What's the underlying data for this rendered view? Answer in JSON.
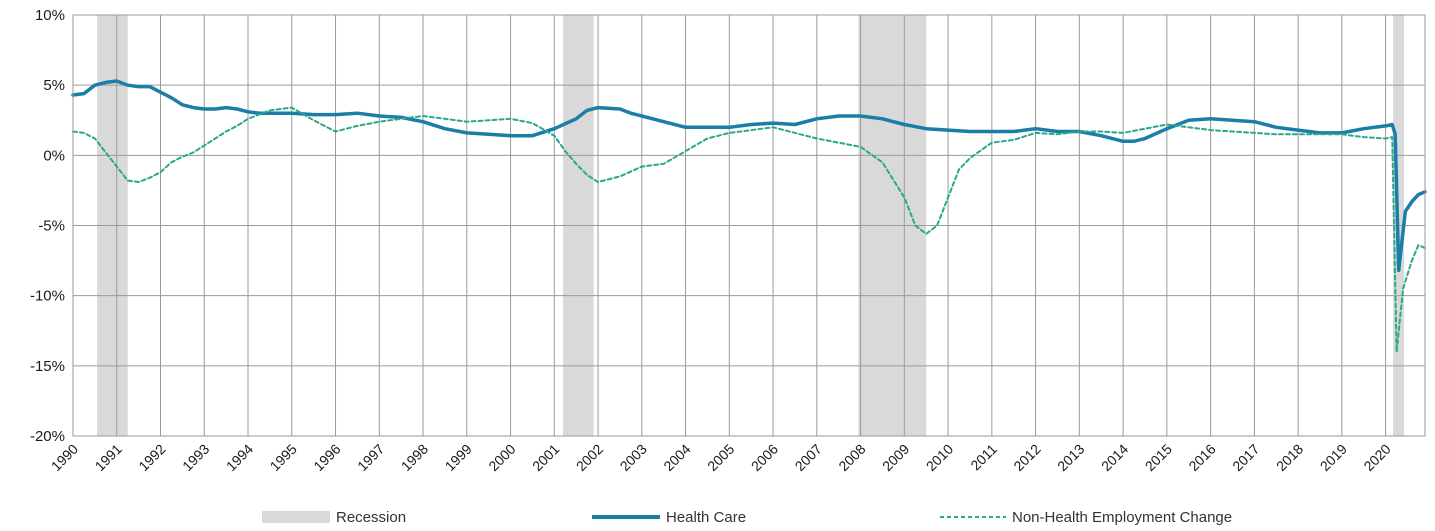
{
  "chart_data": {
    "type": "line",
    "title": "",
    "xlabel": "",
    "ylabel": "",
    "ylim": [
      -20,
      10
    ],
    "xlim": [
      1990,
      2020.9
    ],
    "y_ticks": [
      "10%",
      "5%",
      "0%",
      "-5%",
      "-10%",
      "-15%",
      "-20%"
    ],
    "x_ticks": [
      "1990",
      "1991",
      "1992",
      "1993",
      "1994",
      "1995",
      "1996",
      "1997",
      "1998",
      "1999",
      "2000",
      "2001",
      "2002",
      "2003",
      "2004",
      "2005",
      "2006",
      "2007",
      "2008",
      "2009",
      "2010",
      "2011",
      "2012",
      "2013",
      "2014",
      "2015",
      "2016",
      "2017",
      "2018",
      "2019",
      "2020"
    ],
    "grid": true,
    "legend_position": "bottom",
    "recessions": [
      [
        1990.55,
        1991.25
      ],
      [
        2001.2,
        2001.9
      ],
      [
        2007.95,
        2009.5
      ],
      [
        2020.17,
        2020.42
      ]
    ],
    "legend": [
      "Recession",
      "Health Care",
      "Non-Health Employment Change"
    ],
    "series": [
      {
        "name": "Health Care",
        "color": "#1a7ea6",
        "style": "solid",
        "points": [
          [
            1990,
            4.3
          ],
          [
            1990.25,
            4.4
          ],
          [
            1990.5,
            5.0
          ],
          [
            1990.75,
            5.2
          ],
          [
            1991,
            5.3
          ],
          [
            1991.25,
            5.0
          ],
          [
            1991.5,
            4.9
          ],
          [
            1991.75,
            4.9
          ],
          [
            1992,
            4.5
          ],
          [
            1992.25,
            4.1
          ],
          [
            1992.5,
            3.6
          ],
          [
            1992.75,
            3.4
          ],
          [
            1993,
            3.3
          ],
          [
            1993.25,
            3.3
          ],
          [
            1993.5,
            3.4
          ],
          [
            1993.75,
            3.3
          ],
          [
            1994,
            3.1
          ],
          [
            1994.25,
            3.0
          ],
          [
            1994.5,
            3.0
          ],
          [
            1994.75,
            3.0
          ],
          [
            1995,
            3.0
          ],
          [
            1995.5,
            2.9
          ],
          [
            1996,
            2.9
          ],
          [
            1996.5,
            3.0
          ],
          [
            1997,
            2.8
          ],
          [
            1997.5,
            2.7
          ],
          [
            1998,
            2.4
          ],
          [
            1998.5,
            1.9
          ],
          [
            1999,
            1.6
          ],
          [
            1999.5,
            1.5
          ],
          [
            2000,
            1.4
          ],
          [
            2000.5,
            1.4
          ],
          [
            2001,
            1.9
          ],
          [
            2001.5,
            2.6
          ],
          [
            2001.75,
            3.2
          ],
          [
            2002,
            3.4
          ],
          [
            2002.5,
            3.3
          ],
          [
            2002.75,
            3.0
          ],
          [
            2003,
            2.8
          ],
          [
            2003.5,
            2.4
          ],
          [
            2004,
            2.0
          ],
          [
            2004.5,
            2.0
          ],
          [
            2005,
            2.0
          ],
          [
            2005.5,
            2.2
          ],
          [
            2006,
            2.3
          ],
          [
            2006.5,
            2.2
          ],
          [
            2007,
            2.6
          ],
          [
            2007.5,
            2.8
          ],
          [
            2008,
            2.8
          ],
          [
            2008.5,
            2.6
          ],
          [
            2009,
            2.2
          ],
          [
            2009.5,
            1.9
          ],
          [
            2010,
            1.8
          ],
          [
            2010.5,
            1.7
          ],
          [
            2011,
            1.7
          ],
          [
            2011.5,
            1.7
          ],
          [
            2012,
            1.9
          ],
          [
            2012.5,
            1.7
          ],
          [
            2013,
            1.7
          ],
          [
            2013.5,
            1.4
          ],
          [
            2014,
            1.0
          ],
          [
            2014.25,
            1.0
          ],
          [
            2014.5,
            1.2
          ],
          [
            2015,
            1.9
          ],
          [
            2015.5,
            2.5
          ],
          [
            2016,
            2.6
          ],
          [
            2016.5,
            2.5
          ],
          [
            2017,
            2.4
          ],
          [
            2017.5,
            2.0
          ],
          [
            2018,
            1.8
          ],
          [
            2018.5,
            1.6
          ],
          [
            2019,
            1.6
          ],
          [
            2019.5,
            1.9
          ],
          [
            2020,
            2.1
          ],
          [
            2020.15,
            2.2
          ],
          [
            2020.22,
            1.5
          ],
          [
            2020.3,
            -8.2
          ],
          [
            2020.45,
            -4.0
          ],
          [
            2020.6,
            -3.3
          ],
          [
            2020.75,
            -2.8
          ],
          [
            2020.9,
            -2.6
          ]
        ]
      },
      {
        "name": "Non-Health Employment Change",
        "color": "#2ba889",
        "style": "dashed",
        "points": [
          [
            1990,
            1.7
          ],
          [
            1990.25,
            1.6
          ],
          [
            1990.5,
            1.2
          ],
          [
            1990.75,
            0.2
          ],
          [
            1991,
            -0.8
          ],
          [
            1991.25,
            -1.8
          ],
          [
            1991.5,
            -1.9
          ],
          [
            1991.75,
            -1.6
          ],
          [
            1992,
            -1.2
          ],
          [
            1992.25,
            -0.5
          ],
          [
            1992.5,
            -0.1
          ],
          [
            1992.75,
            0.2
          ],
          [
            1993,
            0.7
          ],
          [
            1993.25,
            1.2
          ],
          [
            1993.5,
            1.7
          ],
          [
            1993.75,
            2.1
          ],
          [
            1994,
            2.6
          ],
          [
            1994.5,
            3.2
          ],
          [
            1995,
            3.4
          ],
          [
            1995.5,
            2.5
          ],
          [
            1996,
            1.7
          ],
          [
            1996.5,
            2.1
          ],
          [
            1997,
            2.4
          ],
          [
            1997.5,
            2.6
          ],
          [
            1998,
            2.8
          ],
          [
            1998.5,
            2.6
          ],
          [
            1999,
            2.4
          ],
          [
            1999.5,
            2.5
          ],
          [
            2000,
            2.6
          ],
          [
            2000.5,
            2.3
          ],
          [
            2001,
            1.4
          ],
          [
            2001.25,
            0.3
          ],
          [
            2001.5,
            -0.6
          ],
          [
            2001.75,
            -1.4
          ],
          [
            2002,
            -1.9
          ],
          [
            2002.5,
            -1.5
          ],
          [
            2003,
            -0.8
          ],
          [
            2003.5,
            -0.6
          ],
          [
            2004,
            0.3
          ],
          [
            2004.5,
            1.2
          ],
          [
            2005,
            1.6
          ],
          [
            2005.5,
            1.8
          ],
          [
            2006,
            2.0
          ],
          [
            2006.5,
            1.6
          ],
          [
            2007,
            1.2
          ],
          [
            2007.5,
            0.9
          ],
          [
            2008,
            0.6
          ],
          [
            2008.5,
            -0.5
          ],
          [
            2009,
            -3.0
          ],
          [
            2009.25,
            -5.0
          ],
          [
            2009.5,
            -5.6
          ],
          [
            2009.75,
            -5.0
          ],
          [
            2010,
            -3.0
          ],
          [
            2010.25,
            -1.0
          ],
          [
            2010.5,
            -0.2
          ],
          [
            2011,
            0.9
          ],
          [
            2011.5,
            1.1
          ],
          [
            2012,
            1.6
          ],
          [
            2012.5,
            1.5
          ],
          [
            2013,
            1.7
          ],
          [
            2013.5,
            1.7
          ],
          [
            2014,
            1.6
          ],
          [
            2014.5,
            1.9
          ],
          [
            2015,
            2.2
          ],
          [
            2015.5,
            2.0
          ],
          [
            2016,
            1.8
          ],
          [
            2016.5,
            1.7
          ],
          [
            2017,
            1.6
          ],
          [
            2017.5,
            1.5
          ],
          [
            2018,
            1.5
          ],
          [
            2018.5,
            1.5
          ],
          [
            2019,
            1.5
          ],
          [
            2019.5,
            1.3
          ],
          [
            2020,
            1.2
          ],
          [
            2020.15,
            1.3
          ],
          [
            2020.25,
            -14.0
          ],
          [
            2020.4,
            -9.5
          ],
          [
            2020.6,
            -7.5
          ],
          [
            2020.75,
            -6.4
          ],
          [
            2020.9,
            -6.6
          ]
        ]
      }
    ]
  }
}
